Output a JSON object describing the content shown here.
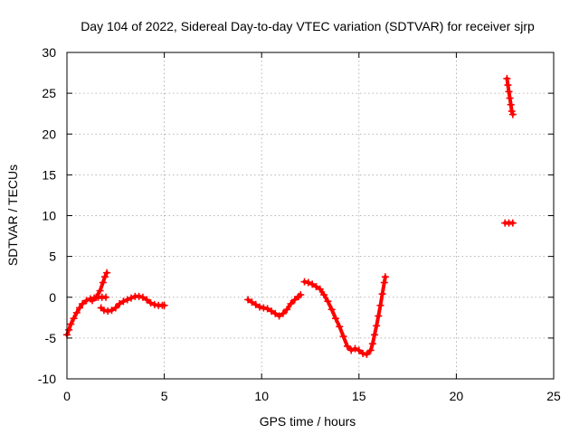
{
  "chart_data": {
    "type": "scatter",
    "title": "Day 104 of 2022, Sidereal Day-to-day VTEC variation (SDTVAR) for receiver sjrp",
    "xlabel": "GPS time / hours",
    "ylabel": "SDTVAR / TECUs",
    "xlim": [
      0,
      25
    ],
    "ylim": [
      -10,
      30
    ],
    "xticks": [
      "0",
      "5",
      "10",
      "15",
      "20",
      "25"
    ],
    "yticks": [
      "-10",
      "-5",
      "0",
      "5",
      "10",
      "15",
      "20",
      "25",
      "30"
    ],
    "grid": true,
    "marker": "plus",
    "color": "#ff0000",
    "series": [
      {
        "segments": [
          [
            [
              0.0,
              -4.6
            ],
            [
              0.1,
              -4.0
            ],
            [
              0.2,
              -3.3
            ],
            [
              0.35,
              -2.6
            ],
            [
              0.5,
              -1.9
            ],
            [
              0.65,
              -1.3
            ],
            [
              0.8,
              -0.8
            ],
            [
              1.0,
              -0.4
            ],
            [
              1.2,
              -0.2
            ],
            [
              1.4,
              -0.1
            ],
            [
              1.6,
              0.0
            ],
            [
              1.8,
              0.0
            ],
            [
              2.0,
              0.0
            ]
          ],
          [
            [
              1.3,
              -0.4
            ],
            [
              1.5,
              0.0
            ],
            [
              1.7,
              0.8
            ],
            [
              1.85,
              1.8
            ],
            [
              1.95,
              2.5
            ],
            [
              2.05,
              3.0
            ]
          ],
          [
            [
              1.75,
              -1.3
            ],
            [
              1.9,
              -1.6
            ],
            [
              2.1,
              -1.7
            ],
            [
              2.3,
              -1.6
            ],
            [
              2.5,
              -1.3
            ],
            [
              2.7,
              -0.8
            ],
            [
              2.9,
              -0.5
            ],
            [
              3.1,
              -0.3
            ],
            [
              3.3,
              -0.1
            ],
            [
              3.5,
              0.1
            ],
            [
              3.7,
              0.1
            ],
            [
              3.9,
              0.0
            ],
            [
              4.1,
              -0.3
            ],
            [
              4.3,
              -0.7
            ],
            [
              4.5,
              -0.9
            ],
            [
              4.7,
              -1.0
            ],
            [
              4.9,
              -1.0
            ],
            [
              5.0,
              -1.0
            ]
          ],
          [
            [
              9.3,
              -0.3
            ],
            [
              9.5,
              -0.6
            ],
            [
              9.7,
              -0.9
            ],
            [
              9.9,
              -1.2
            ],
            [
              10.1,
              -1.3
            ],
            [
              10.3,
              -1.4
            ],
            [
              10.5,
              -1.7
            ],
            [
              10.7,
              -2.0
            ],
            [
              10.9,
              -2.3
            ],
            [
              11.1,
              -2.0
            ],
            [
              11.3,
              -1.5
            ],
            [
              11.5,
              -0.8
            ],
            [
              11.7,
              -0.3
            ],
            [
              11.9,
              0.1
            ],
            [
              12.0,
              0.3
            ]
          ],
          [
            [
              12.2,
              1.9
            ],
            [
              12.4,
              1.8
            ],
            [
              12.6,
              1.6
            ],
            [
              12.8,
              1.3
            ],
            [
              13.0,
              1.0
            ],
            [
              13.2,
              0.3
            ],
            [
              13.4,
              -0.5
            ],
            [
              13.6,
              -1.5
            ],
            [
              13.8,
              -2.6
            ],
            [
              14.0,
              -3.6
            ],
            [
              14.2,
              -4.8
            ],
            [
              14.4,
              -6.0
            ],
            [
              14.6,
              -6.5
            ],
            [
              14.8,
              -6.3
            ],
            [
              15.0,
              -6.5
            ],
            [
              15.2,
              -6.9
            ],
            [
              15.4,
              -7.0
            ],
            [
              15.6,
              -6.5
            ],
            [
              15.7,
              -5.7
            ],
            [
              15.8,
              -4.6
            ],
            [
              15.9,
              -3.5
            ],
            [
              16.0,
              -2.3
            ],
            [
              16.1,
              -1.0
            ],
            [
              16.2,
              0.4
            ],
            [
              16.3,
              1.8
            ],
            [
              16.35,
              2.5
            ]
          ],
          [
            [
              22.6,
              26.8
            ],
            [
              22.65,
              26.0
            ],
            [
              22.7,
              25.2
            ],
            [
              22.75,
              24.4
            ],
            [
              22.8,
              23.6
            ],
            [
              22.85,
              22.8
            ],
            [
              22.9,
              22.4
            ]
          ],
          [
            [
              22.5,
              9.1
            ],
            [
              22.7,
              9.1
            ],
            [
              22.9,
              9.1
            ]
          ]
        ]
      }
    ]
  }
}
